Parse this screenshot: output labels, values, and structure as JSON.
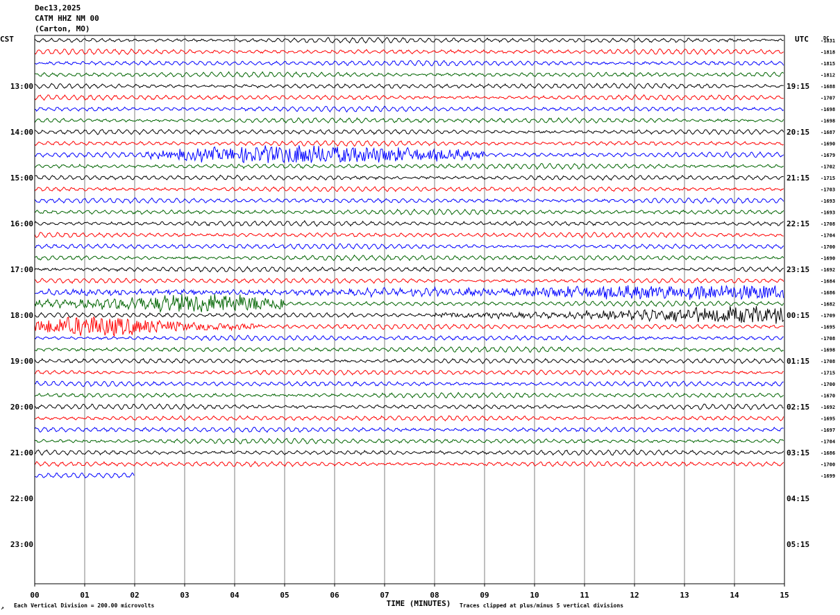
{
  "header": {
    "date": "Dec13,2025",
    "station": "CATM HHZ NM 00",
    "location": "(Carton, MO)"
  },
  "left_axis_title": "CST",
  "right_axis_title": "UTC",
  "dc_title": "DC",
  "footer": {
    "scale_note": "Each Vertical Division =  200.00 microvolts",
    "xlabel": "TIME (MINUTES)",
    "clip_note": "Traces clipped at plus/minus 5 vertical divisions"
  },
  "colors": {
    "black": "#000000",
    "red": "#ff0000",
    "blue": "#0000ff",
    "green": "#006400",
    "grid": "#7f7f7f",
    "background": "#ffffff"
  },
  "chart_data": {
    "type": "line",
    "title": "CATM HHZ NM 00",
    "xlabel": "TIME (MINUTES)",
    "xlim": [
      0,
      15
    ],
    "x_ticks": [
      "00",
      "01",
      "02",
      "03",
      "04",
      "05",
      "06",
      "07",
      "08",
      "09",
      "10",
      "11",
      "12",
      "13",
      "14",
      "15"
    ],
    "lines_per_hour": 4,
    "minutes_per_line": 15,
    "cst_hour_labels": [
      "13:00",
      "14:00",
      "15:00",
      "16:00",
      "17:00",
      "18:00",
      "19:00",
      "20:00",
      "21:00",
      "22:00",
      "23:00"
    ],
    "utc_hour_labels": [
      "19:15",
      "20:15",
      "21:15",
      "22:15",
      "23:15",
      "00:15",
      "01:15",
      "02:15",
      "03:15",
      "04:15",
      "05:15"
    ],
    "trace_color_cycle": [
      "black",
      "red",
      "blue",
      "green"
    ],
    "dc_offsets": [
      -1831,
      -1818,
      -1815,
      -1812,
      -1688,
      -1707,
      -1698,
      -1698,
      -1687,
      -1690,
      -1679,
      -1702,
      -1715,
      -1703,
      -1693,
      -1693,
      -1708,
      -1704,
      -1700,
      -1690,
      -1692,
      -1684,
      -1686,
      -1682,
      -1709,
      -1695,
      -1708,
      -1698,
      -1708,
      -1715,
      -1700,
      -1670,
      -1692,
      -1695,
      -1697,
      -1704,
      -1686,
      -1700,
      -1699
    ],
    "last_trace_end_minute": 2.0,
    "events": [
      {
        "line": 10,
        "start_min": 2.2,
        "end_min": 9.0,
        "peak_min": 5.5,
        "amplitude_divisions": 3.5
      },
      {
        "line": 22,
        "start_min": 0.0,
        "end_min": 15.0,
        "peak_min": 14.5,
        "amplitude_divisions": 2.5
      },
      {
        "line": 23,
        "start_min": 0.0,
        "end_min": 5.0,
        "peak_min": 3.5,
        "amplitude_divisions": 3.5
      },
      {
        "line": 24,
        "start_min": 8.0,
        "end_min": 15.0,
        "peak_min": 14.5,
        "amplitude_divisions": 3.0
      },
      {
        "line": 25,
        "start_min": 0.0,
        "end_min": 4.5,
        "peak_min": 1.2,
        "amplitude_divisions": 3.5
      }
    ],
    "clip_divisions": 5,
    "division_microvolts": 200.0
  }
}
